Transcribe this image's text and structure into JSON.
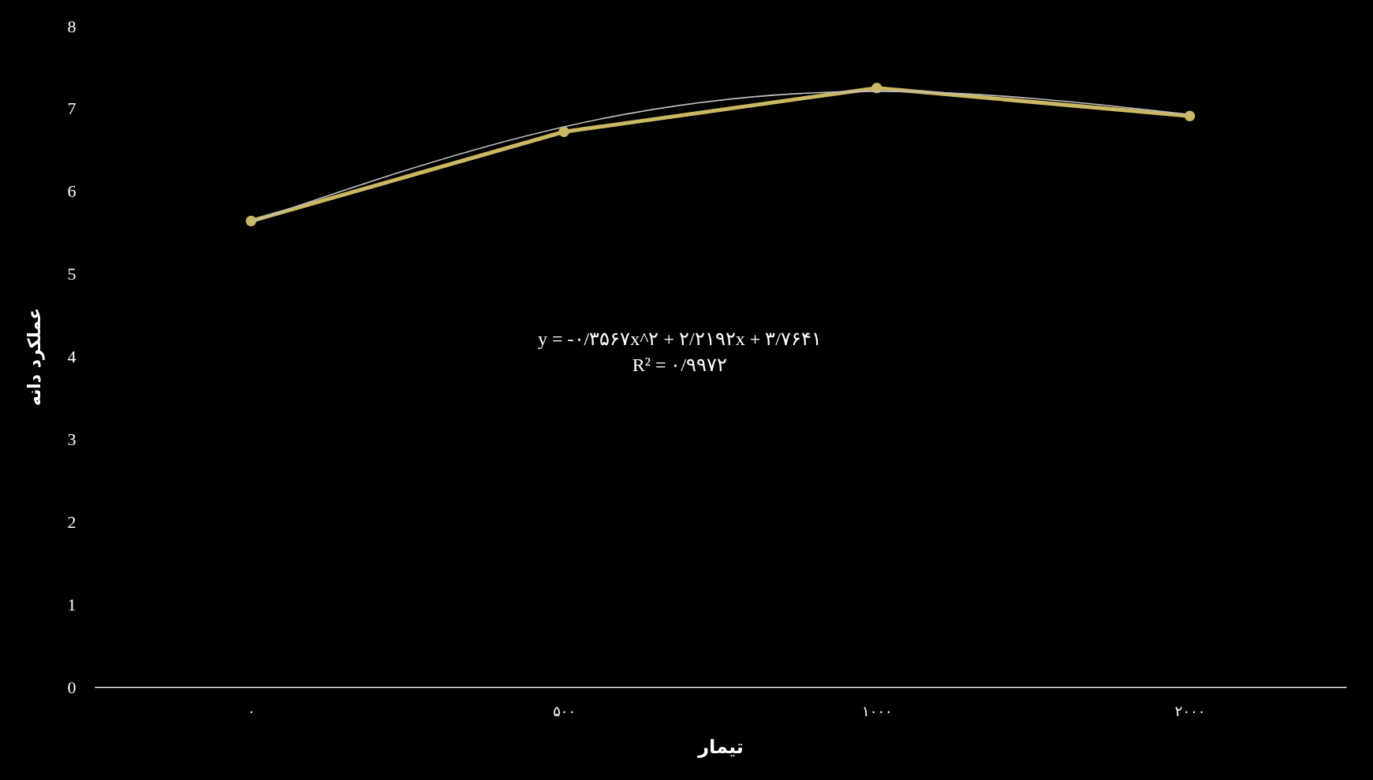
{
  "chart_data": {
    "type": "line",
    "xlabel": "تیمار",
    "ylabel": "عملکرد دانه",
    "categories": [
      "۰",
      "۵۰۰",
      "۱۰۰۰",
      "۲۰۰۰"
    ],
    "ylim": [
      0,
      8
    ],
    "yticks": [
      0,
      1,
      2,
      3,
      4,
      5,
      6,
      7,
      8
    ],
    "series": [
      {
        "color": "#cbb862",
        "values": [
          5.64,
          6.72,
          7.25,
          6.91
        ],
        "marker": "circle"
      },
      {
        "type": "line",
        "color": "#bfbfbf",
        "values": [
          5.63,
          6.78,
          7.21,
          6.93
        ],
        "marker": "none"
      }
    ],
    "annotations": [
      "y = -۰/۳۵۶۷x^۲ + ۲/۲۱۹۲x + ۳/۷۶۴۱",
      "R² = ۰/۹۹۷۲"
    ]
  }
}
